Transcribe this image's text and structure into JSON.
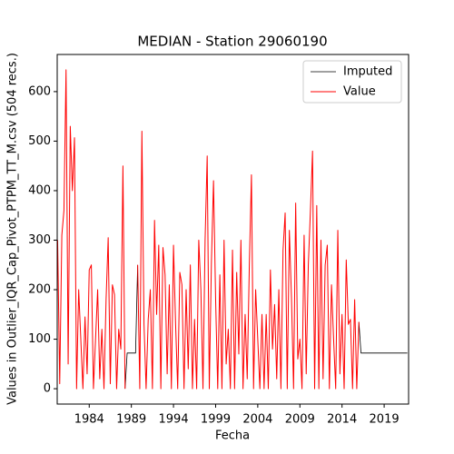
{
  "chart_data": {
    "type": "line",
    "title": "MEDIAN - Station 29060190",
    "xlabel": "Fecha",
    "ylabel": "Values in Outlier_IQR_Cap_Pivot_PTPM_TT_M.csv (504 recs.)",
    "xlim": [
      1980.2,
      2021.9
    ],
    "ylim": [
      -31,
      675
    ],
    "xticks": [
      1984,
      1989,
      1994,
      1999,
      2004,
      2009,
      2014,
      2019
    ],
    "yticks": [
      0,
      100,
      200,
      300,
      400,
      500,
      600
    ],
    "legend": "upper right",
    "series": [
      {
        "name": "Imputed",
        "color": "#000000",
        "x": [
          1988.25,
          1988.5,
          1988.75,
          1989,
          1989.25,
          1989.5,
          1989.75,
          1990,
          2016,
          2016.25,
          2016.5,
          2016.75,
          2017,
          2017.25,
          2017.5,
          2017.75,
          2018,
          2018.25,
          2018.5,
          2018.75,
          2019,
          2019.25,
          2019.5,
          2019.75,
          2020,
          2020.25,
          2020.5,
          2020.75,
          2021,
          2021.25,
          2021.5,
          2021.75
        ],
        "values": [
          0,
          72,
          72,
          72,
          72,
          72,
          250,
          null,
          135,
          72,
          72,
          72,
          72,
          72,
          72,
          72,
          72,
          72,
          72,
          72,
          72,
          72,
          72,
          72,
          72,
          72,
          72,
          72,
          72,
          72,
          72,
          72
        ]
      },
      {
        "name": "Value",
        "color": "#ff0000",
        "x": [
          1980.25,
          1980.5,
          1980.75,
          1981,
          1981.25,
          1981.5,
          1981.75,
          1982,
          1982.25,
          1982.5,
          1982.75,
          1983,
          1983.25,
          1983.5,
          1983.75,
          1984,
          1984.25,
          1984.5,
          1984.75,
          1985,
          1985.25,
          1985.5,
          1985.75,
          1986,
          1986.25,
          1986.5,
          1986.75,
          1987,
          1987.25,
          1987.5,
          1987.75,
          1988,
          1988.25,
          1988.5,
          1988.75,
          1989,
          1989.25,
          1989.5,
          1989.75,
          1990,
          1990.25,
          1990.5,
          1990.75,
          1991,
          1991.25,
          1991.5,
          1991.75,
          1992,
          1992.25,
          1992.5,
          1992.75,
          1993,
          1993.25,
          1993.5,
          1993.75,
          1994,
          1994.25,
          1994.5,
          1994.75,
          1995,
          1995.25,
          1995.5,
          1995.75,
          1996,
          1996.25,
          1996.5,
          1996.75,
          1997,
          1997.25,
          1997.5,
          1997.75,
          1998,
          1998.25,
          1998.5,
          1998.75,
          1999,
          1999.25,
          1999.5,
          1999.75,
          2000,
          2000.25,
          2000.5,
          2000.75,
          2001,
          2001.25,
          2001.5,
          2001.75,
          2002,
          2002.25,
          2002.5,
          2002.75,
          2003,
          2003.25,
          2003.5,
          2003.75,
          2004,
          2004.25,
          2004.5,
          2004.75,
          2005,
          2005.25,
          2005.5,
          2005.75,
          2006,
          2006.25,
          2006.5,
          2006.75,
          2007,
          2007.25,
          2007.5,
          2007.75,
          2008,
          2008.25,
          2008.5,
          2008.75,
          2009,
          2009.25,
          2009.5,
          2009.75,
          2010,
          2010.25,
          2010.5,
          2010.75,
          2011,
          2011.25,
          2011.5,
          2011.75,
          2012,
          2012.25,
          2012.5,
          2012.75,
          2013,
          2013.25,
          2013.5,
          2013.75,
          2014,
          2014.25,
          2014.5,
          2014.75,
          2015,
          2015.25,
          2015.5,
          2015.75,
          2016
        ],
        "values": [
          300,
          10,
          310,
          360,
          644,
          50,
          530,
          400,
          507,
          0,
          200,
          100,
          0,
          145,
          30,
          240,
          250,
          0,
          100,
          200,
          20,
          120,
          0,
          180,
          305,
          10,
          210,
          190,
          0,
          120,
          80,
          450,
          0,
          null,
          null,
          null,
          null,
          null,
          250,
          0,
          520,
          130,
          0,
          140,
          200,
          0,
          340,
          150,
          290,
          0,
          285,
          230,
          30,
          210,
          0,
          290,
          130,
          0,
          235,
          210,
          0,
          200,
          40,
          250,
          0,
          140,
          0,
          300,
          200,
          0,
          300,
          470,
          0,
          255,
          420,
          180,
          0,
          230,
          0,
          300,
          50,
          120,
          0,
          280,
          0,
          235,
          70,
          300,
          0,
          150,
          20,
          250,
          432,
          0,
          200,
          100,
          0,
          150,
          0,
          150,
          0,
          240,
          80,
          170,
          20,
          200,
          0,
          280,
          355,
          0,
          320,
          185,
          0,
          375,
          60,
          100,
          0,
          310,
          30,
          250,
          360,
          480,
          0,
          370,
          0,
          300,
          20,
          250,
          290,
          0,
          210,
          100,
          0,
          320,
          30,
          150,
          0,
          260,
          130,
          140,
          0,
          180,
          0,
          135
        ]
      }
    ]
  }
}
